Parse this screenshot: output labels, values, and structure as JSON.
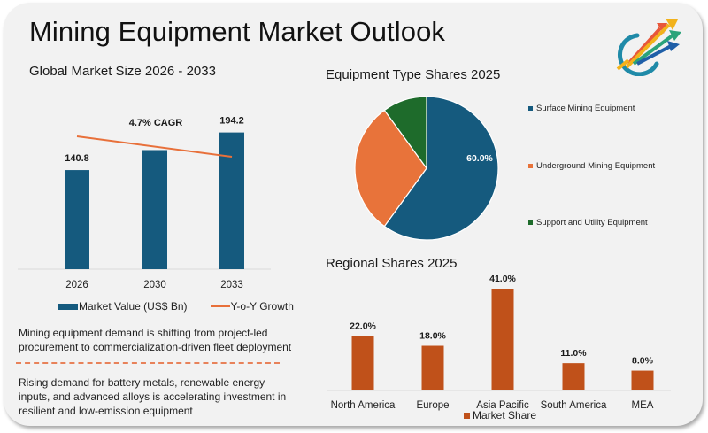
{
  "page": {
    "title": "Mining Equipment Market Outlook",
    "logo_icon": "rising-arrows-logo-icon"
  },
  "colors": {
    "primary_blue": "#155a7e",
    "orange_line": "#e8703a",
    "pie_orange": "#e8733a",
    "pie_green": "#1e6b2b",
    "regional_bar": "#c0511a",
    "card_bg": "#f2f2f2"
  },
  "market_size": {
    "subtitle": "Global Market Size 2026 - 2033",
    "cagr_label": "4.7% CAGR",
    "legend": {
      "bars": "Market Value (US$ Bn)",
      "line": "Y-o-Y Growth"
    }
  },
  "insights": {
    "text_1": "Mining equipment demand is shifting from project-led procurement to commercialization-driven fleet deployment",
    "text_2": "Rising demand for battery metals, renewable energy inputs, and advanced alloys is accelerating investment in resilient and low-emission equipment"
  },
  "equipment_shares": {
    "subtitle": "Equipment Type Shares 2025"
  },
  "regional_shares": {
    "subtitle": "Regional Shares 2025",
    "legend": "Market Share"
  },
  "chart_data": [
    {
      "type": "bar",
      "title": "Global Market Size 2026 - 2033",
      "categories": [
        "2026",
        "2030",
        "2033"
      ],
      "series": [
        {
          "name": "Market Value (US$ Bn)",
          "values": [
            140.8,
            169.2,
            194.2
          ],
          "labels": [
            "140.8",
            "",
            "194.2"
          ]
        },
        {
          "name": "Y-o-Y Growth",
          "kind": "line",
          "trend": "declining",
          "values": [
            1.0,
            0.9,
            0.8
          ]
        }
      ],
      "annotation": "4.7% CAGR",
      "xlabel": "",
      "ylabel": "",
      "ylim": [
        0,
        200
      ],
      "grid": false,
      "legend": "bottom"
    },
    {
      "type": "pie",
      "title": "Equipment Type Shares 2025",
      "categories": [
        "Surface Mining Equipment",
        "Underground Mining Equipment",
        "Support and Utility Equipment"
      ],
      "values": [
        60.0,
        30.0,
        10.0
      ],
      "labels": [
        "60.0%",
        "",
        ""
      ],
      "legend": "right"
    },
    {
      "type": "bar",
      "title": "Regional Shares 2025",
      "categories": [
        "North America",
        "Europe",
        "Asia Pacific",
        "South America",
        "MEA"
      ],
      "series": [
        {
          "name": "Market Share",
          "values": [
            22.0,
            18.0,
            41.0,
            11.0,
            8.0
          ]
        }
      ],
      "labels": [
        "22.0%",
        "18.0%",
        "41.0%",
        "11.0%",
        "8.0%"
      ],
      "ylim": [
        0,
        45
      ],
      "grid": false,
      "legend": "bottom"
    }
  ]
}
